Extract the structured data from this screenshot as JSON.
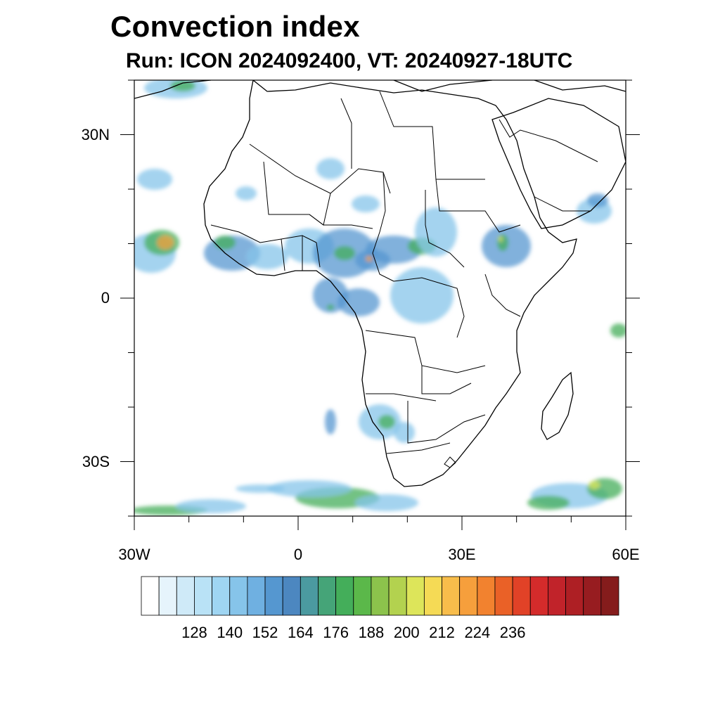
{
  "title": "Convection index",
  "subtitle": "Run: ICON 2024092400,  VT: 20240927-18UTC",
  "map": {
    "lon_range": [
      -30,
      60
    ],
    "lat_range": [
      -40,
      40
    ],
    "lat_ticks": [
      {
        "value": 30,
        "label": "30N"
      },
      {
        "value": 0,
        "label": "0"
      },
      {
        "value": -30,
        "label": "30S"
      }
    ],
    "lon_ticks": [
      {
        "value": -30,
        "label": "30W"
      },
      {
        "value": 0,
        "label": "0"
      },
      {
        "value": 30,
        "label": "30E"
      },
      {
        "value": 60,
        "label": "60E"
      }
    ]
  },
  "colorbar": {
    "colors": [
      "#ffffff",
      "#e6f4fc",
      "#cfeaf8",
      "#b9e2f6",
      "#9fd5f2",
      "#86c4ea",
      "#6fb0e1",
      "#5597d0",
      "#4c87c0",
      "#4b9aa0",
      "#45a478",
      "#44ae5a",
      "#5bb84a",
      "#8cc34c",
      "#b3d24f",
      "#dde55a",
      "#f5da55",
      "#f8bd4b",
      "#f69f3c",
      "#f2822f",
      "#ea6127",
      "#e14227",
      "#d42b2b",
      "#c1232a",
      "#ae1f24",
      "#971c20",
      "#851c1c"
    ],
    "labels": [
      "128",
      "140",
      "152",
      "164",
      "176",
      "188",
      "200",
      "212",
      "224",
      "236"
    ]
  },
  "colors": {
    "low": "#86c4ea",
    "mid": "#5597d0",
    "green": "#44ae5a",
    "yellow": "#dde55a",
    "orange": "#f69f3c",
    "red": "#e14227"
  }
}
